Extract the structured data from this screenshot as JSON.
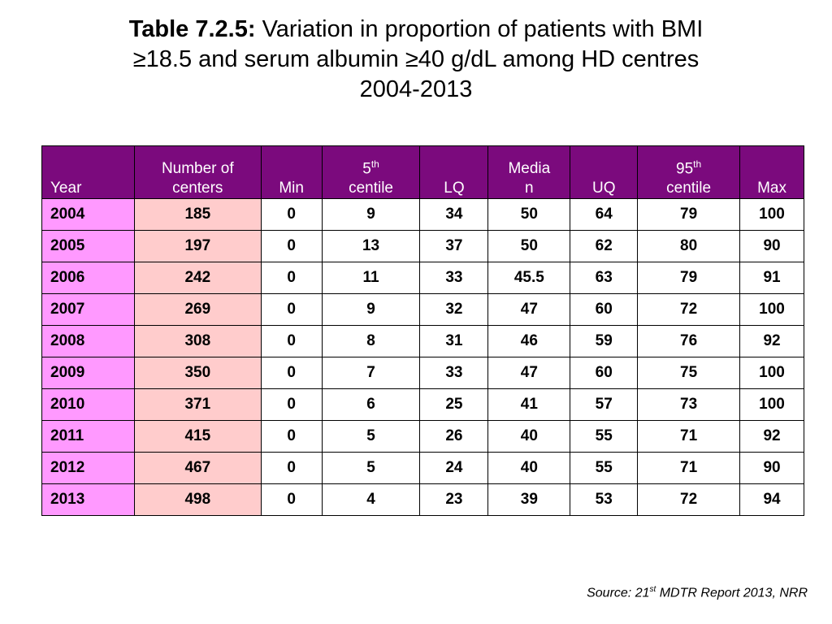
{
  "title": {
    "label": "Table 7.2.5:",
    "line1": "Variation in proportion of patients with BMI",
    "line2": "≥18.5 and serum albumin ≥40 g/dL among HD centres",
    "line3": "2004-2013"
  },
  "table": {
    "headers": {
      "year": "Year",
      "centers_line1": "Number of",
      "centers_line2": "centers",
      "min": "Min",
      "p5_num": "5",
      "p5_sup": "th",
      "p5_word": "centile",
      "lq": "LQ",
      "median_line1": "Media",
      "median_line2": "n",
      "uq": "UQ",
      "p95_num": "95",
      "p95_sup": "th",
      "p95_word": "centile",
      "max": "Max"
    },
    "rows": [
      [
        "2004",
        "185",
        "0",
        "9",
        "34",
        "50",
        "64",
        "79",
        "100"
      ],
      [
        "2005",
        "197",
        "0",
        "13",
        "37",
        "50",
        "62",
        "80",
        "90"
      ],
      [
        "2006",
        "242",
        "0",
        "11",
        "33",
        "45.5",
        "63",
        "79",
        "91"
      ],
      [
        "2007",
        "269",
        "0",
        "9",
        "32",
        "47",
        "60",
        "72",
        "100"
      ],
      [
        "2008",
        "308",
        "0",
        "8",
        "31",
        "46",
        "59",
        "76",
        "92"
      ],
      [
        "2009",
        "350",
        "0",
        "7",
        "33",
        "47",
        "60",
        "75",
        "100"
      ],
      [
        "2010",
        "371",
        "0",
        "6",
        "25",
        "41",
        "57",
        "73",
        "100"
      ],
      [
        "2011",
        "415",
        "0",
        "5",
        "26",
        "40",
        "55",
        "71",
        "92"
      ],
      [
        "2012",
        "467",
        "0",
        "5",
        "24",
        "40",
        "55",
        "71",
        "90"
      ],
      [
        "2013",
        "498",
        "0",
        "4",
        "23",
        "39",
        "53",
        "72",
        "94"
      ]
    ]
  },
  "source": {
    "prefix": "Source: 21",
    "sup": "st",
    "suffix": " MDTR Report 2013, NRR"
  },
  "colors": {
    "header_bg": "#7b0a7d",
    "year_col_bg": "#ff99ff",
    "centers_col_bg": "#ffcccc"
  }
}
